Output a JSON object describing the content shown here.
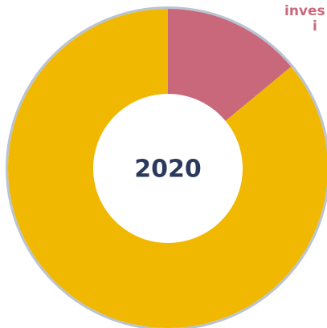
{
  "chart_data": {
    "type": "pie",
    "donut": true,
    "center_label": "2020",
    "annotations": [
      "inves",
      "i"
    ],
    "categories": [
      null,
      null
    ],
    "values": [
      14,
      86
    ],
    "colors": [
      "#c9687a",
      "#f0b800"
    ],
    "outline_color": "#b9c3d3"
  }
}
